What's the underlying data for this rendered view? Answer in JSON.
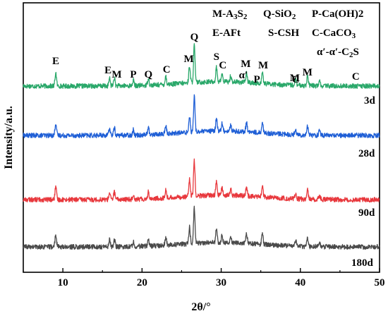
{
  "chart_data": {
    "type": "line",
    "xlabel": "2θ/°",
    "ylabel": "Intensity/a.u.",
    "xlim": [
      5,
      50
    ],
    "x_ticks": [
      10,
      20,
      30,
      40,
      50
    ],
    "x_tick_labels": [
      "10",
      "20",
      "30",
      "40",
      "50"
    ],
    "legend": [
      "M-A3S2",
      "Q-SiO2",
      "P-Ca(OH)2",
      "E-AFt",
      "S-CSH",
      "C-CaCO3",
      "α′-α′-C2S"
    ],
    "series": [
      {
        "name": "3d",
        "color": "#2aa86a"
      },
      {
        "name": "28d",
        "color": "#1f5fd6"
      },
      {
        "name": "90d",
        "color": "#e8383d"
      },
      {
        "name": "180d",
        "color": "#4a4a4a"
      }
    ],
    "peaks": [
      {
        "x": 9.1,
        "h": 1.0
      },
      {
        "x": 15.9,
        "h": 0.55
      },
      {
        "x": 16.5,
        "h": 0.6
      },
      {
        "x": 18.9,
        "h": 0.4
      },
      {
        "x": 20.8,
        "h": 0.55
      },
      {
        "x": 23.0,
        "h": 0.6
      },
      {
        "x": 26.0,
        "h": 1.3
      },
      {
        "x": 26.6,
        "h": 2.8
      },
      {
        "x": 29.4,
        "h": 1.05
      },
      {
        "x": 30.1,
        "h": 0.55
      },
      {
        "x": 31.2,
        "h": 0.45
      },
      {
        "x": 33.2,
        "h": 0.7
      },
      {
        "x": 35.2,
        "h": 0.85
      },
      {
        "x": 39.4,
        "h": 0.45
      },
      {
        "x": 40.9,
        "h": 0.75
      },
      {
        "x": 42.4,
        "h": 0.35
      }
    ],
    "peak_labels": [
      {
        "text": "E",
        "x": 9.1
      },
      {
        "text": "E",
        "x": 15.7
      },
      {
        "text": "M",
        "x": 16.8
      },
      {
        "text": "P",
        "x": 18.9
      },
      {
        "text": "Q",
        "x": 20.8
      },
      {
        "text": "C",
        "x": 23.1
      },
      {
        "text": "M",
        "x": 25.9
      },
      {
        "text": "Q",
        "x": 26.6
      },
      {
        "text": "S",
        "x": 29.4
      },
      {
        "text": "C",
        "x": 30.2
      },
      {
        "text": "M",
        "x": 33.1
      },
      {
        "text": "α′",
        "x": 32.8
      },
      {
        "text": "P",
        "x": 34.5
      },
      {
        "text": "M",
        "x": 35.3
      },
      {
        "text": "C",
        "x": 39.4
      },
      {
        "text": "M",
        "x": 39.3
      },
      {
        "text": "M",
        "x": 40.9
      },
      {
        "text": "C",
        "x": 47.0
      }
    ]
  }
}
